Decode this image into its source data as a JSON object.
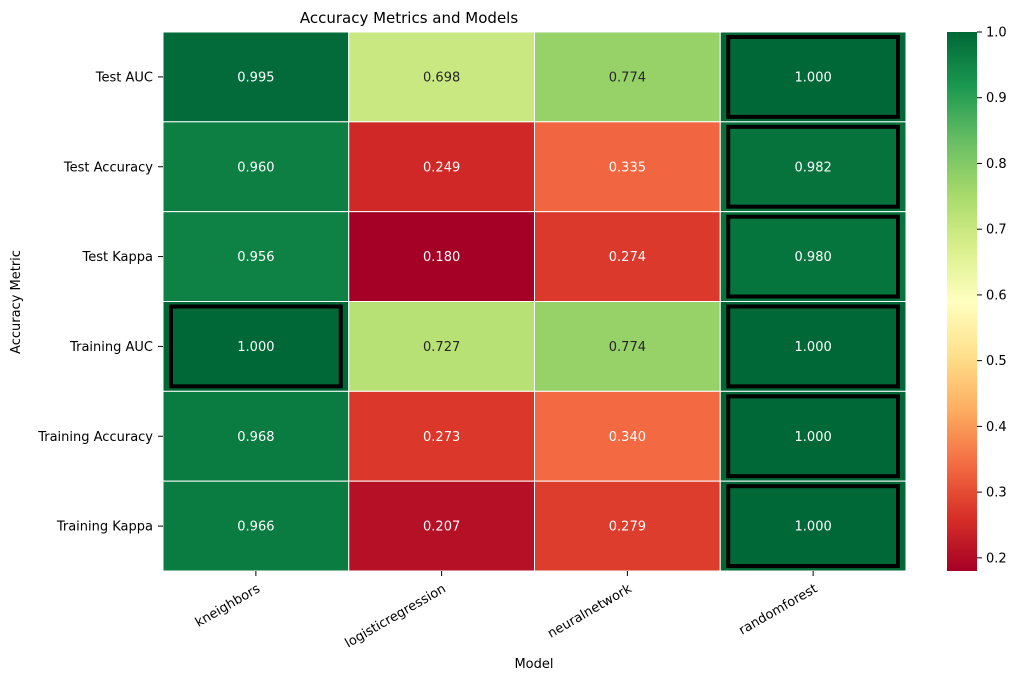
{
  "chart_data": {
    "type": "heatmap",
    "title": "Accuracy Metrics and Models",
    "xlabel": "Model",
    "ylabel": "Accuracy Metric",
    "x_categories": [
      "kneighbors",
      "logisticregression",
      "neuralnetwork",
      "randomforest"
    ],
    "y_categories": [
      "Test AUC",
      "Test Accuracy",
      "Test Kappa",
      "Training AUC",
      "Training Accuracy",
      "Training Kappa"
    ],
    "values": [
      [
        0.995,
        0.698,
        0.774,
        1.0
      ],
      [
        0.96,
        0.249,
        0.335,
        0.982
      ],
      [
        0.956,
        0.18,
        0.274,
        0.98
      ],
      [
        1.0,
        0.727,
        0.774,
        1.0
      ],
      [
        0.968,
        0.273,
        0.34,
        1.0
      ],
      [
        0.966,
        0.207,
        0.279,
        1.0
      ]
    ],
    "highlighted_row_max": true,
    "colormap": "RdYlGn",
    "colorbar": {
      "range": [
        0.18,
        1.0
      ],
      "ticks": [
        "0.2",
        "0.3",
        "0.4",
        "0.5",
        "0.6",
        "0.7",
        "0.8",
        "0.9",
        "1.0"
      ],
      "position": "right"
    },
    "annotation_format": "3 decimals",
    "grid": false
  }
}
